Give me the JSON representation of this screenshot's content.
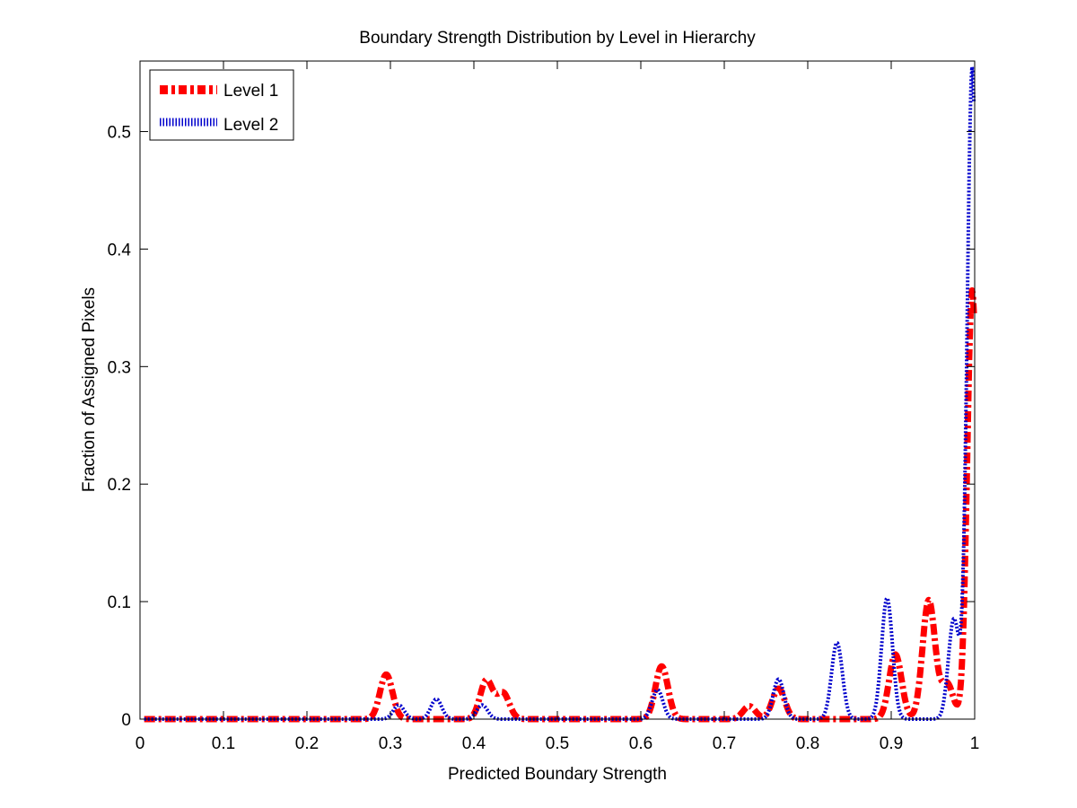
{
  "chart_data": {
    "type": "line",
    "title": "Boundary Strength Distribution by Level in Hierarchy",
    "xlabel": "Predicted Boundary Strength",
    "ylabel": "Fraction of Assigned Pixels",
    "xlim": [
      0,
      1
    ],
    "ylim": [
      0,
      0.56
    ],
    "xticks": [
      "0",
      "0.1",
      "0.2",
      "0.3",
      "0.4",
      "0.5",
      "0.6",
      "0.7",
      "0.8",
      "0.9",
      "1"
    ],
    "yticks": [
      "0",
      "0.1",
      "0.2",
      "0.3",
      "0.4",
      "0.5"
    ],
    "grid": false,
    "legend_position": "top-left",
    "series": [
      {
        "name": "Level 1",
        "color": "#ff0000",
        "style": "dash-dot, thick",
        "peaks": [
          {
            "x": 0.295,
            "y": 0.038
          },
          {
            "x": 0.415,
            "y": 0.033
          },
          {
            "x": 0.435,
            "y": 0.022
          },
          {
            "x": 0.625,
            "y": 0.045
          },
          {
            "x": 0.73,
            "y": 0.011
          },
          {
            "x": 0.765,
            "y": 0.026
          },
          {
            "x": 0.905,
            "y": 0.055
          },
          {
            "x": 0.945,
            "y": 0.101
          },
          {
            "x": 0.967,
            "y": 0.03
          },
          {
            "x": 0.997,
            "y": 0.365
          }
        ]
      },
      {
        "name": "Level 2",
        "color": "#0000cc",
        "style": "dotted, thick",
        "peaks": [
          {
            "x": 0.31,
            "y": 0.012
          },
          {
            "x": 0.355,
            "y": 0.017
          },
          {
            "x": 0.41,
            "y": 0.012
          },
          {
            "x": 0.62,
            "y": 0.025
          },
          {
            "x": 0.765,
            "y": 0.034
          },
          {
            "x": 0.835,
            "y": 0.065
          },
          {
            "x": 0.895,
            "y": 0.103
          },
          {
            "x": 0.975,
            "y": 0.085
          },
          {
            "x": 0.997,
            "y": 0.555
          }
        ]
      }
    ]
  }
}
